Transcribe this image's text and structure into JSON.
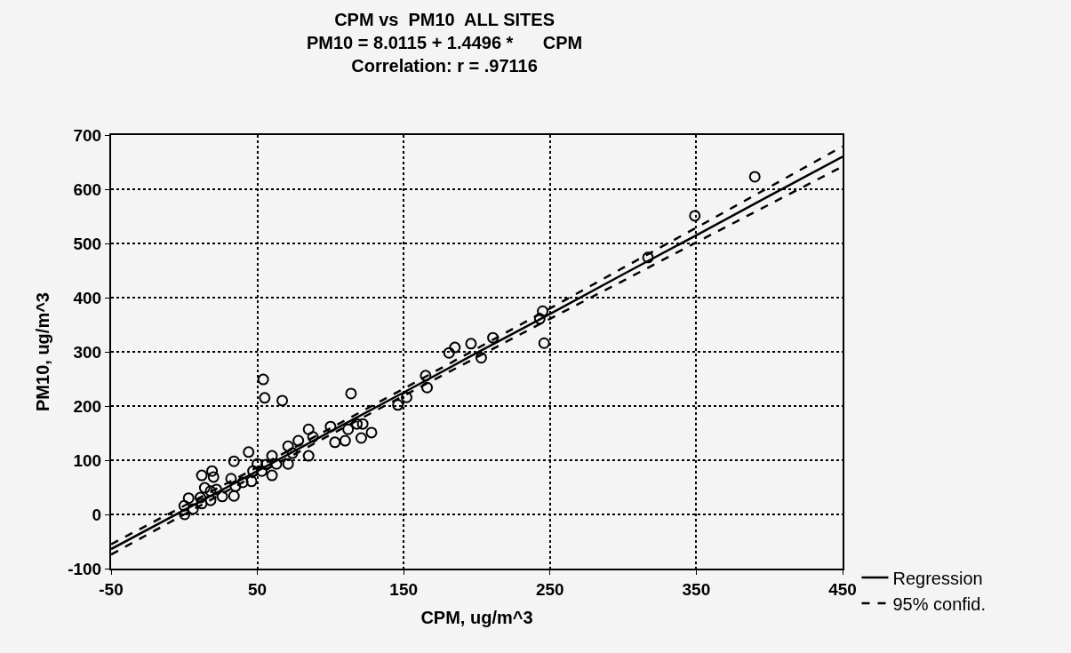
{
  "chart_data": {
    "type": "scatter",
    "title": "CPM vs  PM10  ALL SITES\nPM10 = 8.0115 + 1.4496 *      CPM\nCorrelation: r = .97116",
    "xlabel": "CPM, ug/m^3",
    "ylabel": "PM10, ug/m^3",
    "xlim": [
      -50,
      450
    ],
    "xticks": [
      -50,
      50,
      150,
      250,
      350,
      450
    ],
    "ylim": [
      -100,
      700
    ],
    "yticks": [
      -100,
      0,
      100,
      200,
      300,
      400,
      500,
      600,
      700
    ],
    "grid": true,
    "legend": "bottom right",
    "series": [
      {
        "color": "#000000",
        "marker": "circle",
        "x": [
          0.3,
          0,
          3,
          6,
          12,
          11,
          18,
          14,
          12,
          19,
          20,
          18,
          26,
          22,
          32,
          34,
          35,
          34,
          44,
          40,
          46,
          47,
          50,
          54,
          55,
          67,
          53,
          60,
          60,
          56,
          63,
          71,
          71,
          74,
          78,
          85,
          85,
          88,
          100,
          103,
          110,
          112,
          114,
          118,
          122,
          121,
          128,
          146,
          152,
          165,
          166,
          181,
          185,
          196,
          203,
          211,
          243,
          245,
          246,
          317,
          349,
          390
        ],
        "values": [
          0,
          16,
          30,
          10,
          20,
          31,
          26,
          49,
          72,
          80,
          69,
          43,
          33,
          46,
          66,
          34,
          52,
          98,
          115,
          59,
          61,
          80,
          93,
          249,
          215,
          210,
          80,
          108,
          72,
          92,
          93,
          93,
          126,
          113,
          136,
          157,
          108,
          143,
          162,
          133,
          136,
          157,
          223,
          167,
          167,
          141,
          151,
          202,
          216,
          256,
          234,
          298,
          308,
          315,
          289,
          326,
          361,
          375,
          316,
          474,
          551,
          623
        ]
      },
      {
        "type": "line",
        "name": "Regression",
        "color": "#000000",
        "line_style": "solid",
        "x": [
          -50,
          0,
          50,
          100,
          150,
          200,
          250,
          300,
          350,
          400,
          450
        ],
        "values": [
          -64,
          8,
          80,
          153,
          225,
          298,
          370,
          443,
          515,
          588,
          660
        ]
      },
      {
        "type": "line",
        "name": "95% confid.",
        "color": "#000000",
        "line_style": "dashed",
        "x": [
          -50,
          0,
          50,
          100,
          150,
          200,
          250,
          300,
          350,
          400,
          450
        ],
        "values": [
          -55,
          16,
          87,
          159,
          232,
          306,
          380,
          455,
          529,
          604,
          679
        ]
      },
      {
        "type": "line",
        "color": "#000000",
        "line_style": "dashed",
        "x": [
          -50,
          0,
          50,
          100,
          150,
          200,
          250,
          300,
          350,
          400,
          450
        ],
        "values": [
          -74,
          0,
          74,
          147,
          219,
          290,
          361,
          431,
          502,
          572,
          642
        ]
      }
    ]
  }
}
